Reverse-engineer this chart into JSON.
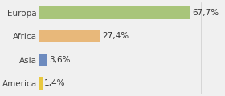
{
  "categories": [
    "Europa",
    "Africa",
    "Asia",
    "America"
  ],
  "values": [
    67.7,
    27.4,
    3.6,
    1.4
  ],
  "labels": [
    "67,7%",
    "27,4%",
    "3,6%",
    "1,4%"
  ],
  "bar_colors": [
    "#a8c57a",
    "#e8b87a",
    "#6d8bbf",
    "#e8c840"
  ],
  "background_color": "#f0f0f0",
  "xlim": [
    0,
    82
  ],
  "label_fontsize": 7.5,
  "tick_fontsize": 7.5
}
